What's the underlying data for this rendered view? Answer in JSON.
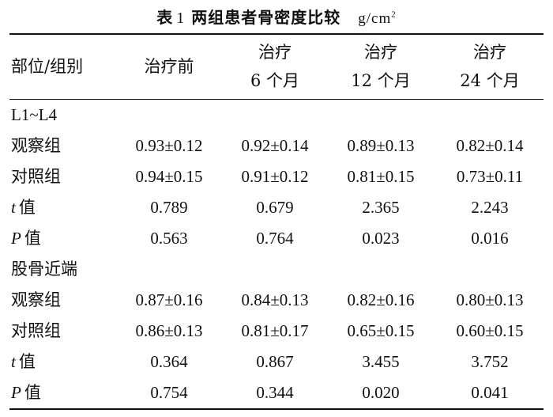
{
  "title": {
    "prefix": "表",
    "number": "1",
    "text": "两组患者骨密度比较",
    "unit": "g/cm",
    "unit_sup": "2"
  },
  "header": {
    "col0": "部位/组别",
    "col1": "治疗前",
    "col2_line1": "治疗",
    "col2_line2": "6 个月",
    "col3_line1": "治疗",
    "col3_line2": "12 个月",
    "col4_line1": "治疗",
    "col4_line2": "24 个月"
  },
  "sections": [
    {
      "label": "L1~L4",
      "rows": [
        {
          "label": "观察组",
          "values": [
            "0.93±0.12",
            "0.92±0.14",
            "0.89±0.13",
            "0.82±0.14"
          ]
        },
        {
          "label": "对照组",
          "values": [
            "0.94±0.15",
            "0.91±0.12",
            "0.81±0.15",
            "0.73±0.11"
          ]
        },
        {
          "stat": "t",
          "label": "值",
          "values": [
            "0.789",
            "0.679",
            "2.365",
            "2.243"
          ]
        },
        {
          "stat": "P",
          "label": "值",
          "values": [
            "0.563",
            "0.764",
            "0.023",
            "0.016"
          ]
        }
      ]
    },
    {
      "label": "股骨近端",
      "rows": [
        {
          "label": "观察组",
          "values": [
            "0.87±0.16",
            "0.84±0.13",
            "0.82±0.16",
            "0.80±0.13"
          ]
        },
        {
          "label": "对照组",
          "values": [
            "0.86±0.13",
            "0.81±0.17",
            "0.65±0.15",
            "0.60±0.15"
          ]
        },
        {
          "stat": "t",
          "label": "值",
          "values": [
            "0.364",
            "0.867",
            "3.455",
            "3.752"
          ]
        },
        {
          "stat": "P",
          "label": "值",
          "values": [
            "0.754",
            "0.344",
            "0.020",
            "0.041"
          ]
        }
      ]
    }
  ]
}
